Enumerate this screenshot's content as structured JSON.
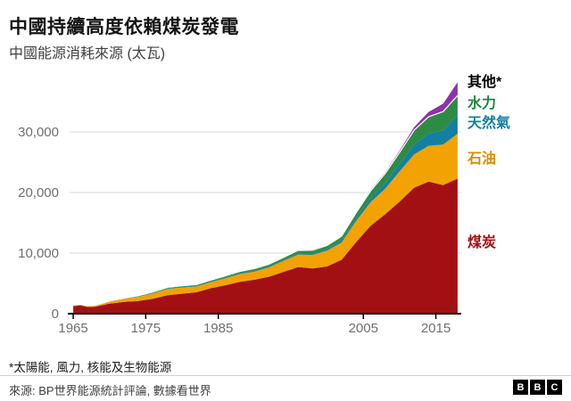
{
  "header": {
    "title": "中國持續高度依賴煤炭發電",
    "subtitle": "中國能源消耗來源 (太瓦)"
  },
  "footer": {
    "footnote": "*太陽能, 風力, 核能及生物能源",
    "source": "來源: BP世界能源統計評論, 數據看世界",
    "logo_letters": [
      "B",
      "B",
      "C"
    ]
  },
  "chart_data": {
    "type": "area",
    "stacked": true,
    "title": "中國持續高度依賴煤炭發電",
    "subtitle": "中國能源消耗來源 (太瓦)",
    "unit": "太瓦",
    "xlim": [
      1964.5,
      2018.5
    ],
    "ylim": [
      0,
      38500
    ],
    "grid": true,
    "legend_position": "right",
    "x": [
      1965,
      1966,
      1967,
      1968,
      1969,
      1970,
      1972,
      1974,
      1976,
      1978,
      1980,
      1982,
      1984,
      1986,
      1988,
      1990,
      1992,
      1994,
      1996,
      1998,
      2000,
      2002,
      2004,
      2006,
      2008,
      2010,
      2012,
      2014,
      2016,
      2018
    ],
    "series": [
      {
        "label": "煤炭",
        "color": "#a21014",
        "legend_color": "#a21014",
        "values": [
          1250,
          1350,
          1100,
          1150,
          1400,
          1650,
          1950,
          2100,
          2450,
          3050,
          3300,
          3550,
          4200,
          4700,
          5250,
          5600,
          6100,
          6900,
          7700,
          7450,
          7800,
          8900,
          11800,
          14500,
          16400,
          18500,
          20800,
          21800,
          21200,
          22300
        ]
      },
      {
        "label": "石油",
        "color": "#f2a202",
        "legend_color": "#d88f00",
        "values": [
          120,
          150,
          160,
          180,
          250,
          350,
          500,
          700,
          900,
          1050,
          1020,
          950,
          1000,
          1150,
          1300,
          1350,
          1550,
          1800,
          2050,
          2250,
          2600,
          2850,
          3500,
          3900,
          4200,
          5000,
          5500,
          5900,
          6700,
          7400
        ]
      },
      {
        "label": "天然氣",
        "color": "#1380a1",
        "legend_color": "#1380a1",
        "values": [
          10,
          12,
          14,
          16,
          20,
          30,
          55,
          75,
          110,
          130,
          130,
          120,
          120,
          125,
          135,
          150,
          160,
          170,
          190,
          220,
          270,
          330,
          450,
          650,
          900,
          1200,
          1600,
          2000,
          2350,
          3100
        ]
      },
      {
        "label": "水力",
        "color": "#2e8b46",
        "legend_color": "#1f8341",
        "values": [
          40,
          45,
          42,
          48,
          55,
          60,
          75,
          90,
          110,
          125,
          160,
          190,
          230,
          270,
          300,
          340,
          360,
          430,
          500,
          550,
          600,
          700,
          900,
          1200,
          1600,
          1900,
          2400,
          2800,
          3100,
          3200
        ]
      },
      {
        "label": "其他*",
        "color": "#8d32a8",
        "legend_color": "#000000",
        "values": [
          5,
          5,
          5,
          5,
          5,
          6,
          8,
          10,
          12,
          14,
          16,
          18,
          20,
          25,
          30,
          35,
          40,
          45,
          55,
          60,
          60,
          80,
          130,
          160,
          200,
          300,
          500,
          800,
          1300,
          2200
        ]
      }
    ],
    "yticks": [
      {
        "value": 0,
        "label": "0"
      },
      {
        "value": 10000,
        "label": "10,000"
      },
      {
        "value": 20000,
        "label": "20,000"
      },
      {
        "value": 30000,
        "label": "30,000"
      }
    ],
    "xticks": [
      {
        "value": 1965,
        "label": "1965"
      },
      {
        "value": 1975,
        "label": "1975"
      },
      {
        "value": 1985,
        "label": "1985"
      },
      {
        "value": 2005,
        "label": "2005"
      },
      {
        "value": 2015,
        "label": "2015"
      }
    ]
  }
}
